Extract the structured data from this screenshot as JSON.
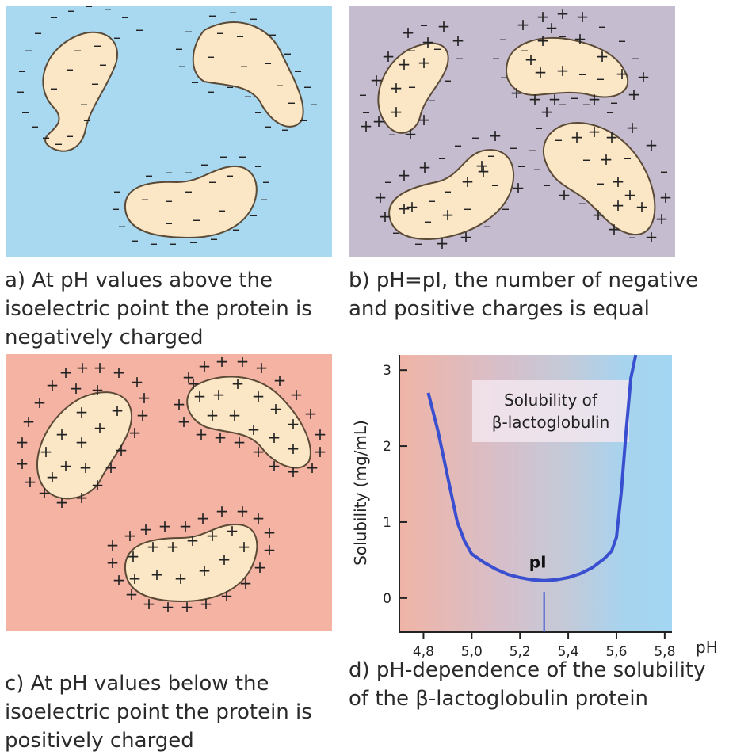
{
  "colors": {
    "panel_a_bg": "#a9d8f1",
    "panel_b_bg": "#c6bccf",
    "panel_c_bg": "#f4b3a3",
    "protein_fill": "#fbe6c6",
    "protein_stroke": "#5a4a36",
    "curve": "#3a4fd0",
    "pi_line": "#3a4fd0"
  },
  "symbols": {
    "negative": "–",
    "positive": "+"
  },
  "captions": {
    "a": [
      "a) At pH values above the",
      "isoelectric point the protein is",
      "negatively charged"
    ],
    "b": [
      "b) pH=pI, the number of negative",
      "and positive charges is equal"
    ],
    "c": [
      "c) At pH values below the",
      "isoelectric point the protein is",
      "positively charged"
    ],
    "d": [
      "d) pH-dependence of the solubility",
      "of the β-lactoglobulin protein"
    ]
  },
  "chart_data": {
    "type": "line",
    "xlabel": "pH",
    "ylabel": "Solubility  (mg/mL)",
    "x_ticks": [
      "4,8",
      "5,0",
      "5,2",
      "5,4",
      "5,6",
      "5,8"
    ],
    "x_tick_values": [
      4.8,
      5.0,
      5.2,
      5.4,
      5.6,
      5.8
    ],
    "y_ticks": [
      "0",
      "1",
      "2",
      "3"
    ],
    "y_tick_values": [
      0,
      1,
      2,
      3
    ],
    "xlim": [
      4.7,
      5.83
    ],
    "ylim": [
      -0.45,
      3.2
    ],
    "legend_box": [
      "Solubility of",
      "β-lactoglobulin"
    ],
    "pi_label": "pI",
    "pi_value": 5.3,
    "series": [
      {
        "x": [
          4.82,
          4.86,
          4.9,
          4.94,
          4.97,
          5.0,
          5.05,
          5.1,
          5.15,
          5.2,
          5.25,
          5.3,
          5.35,
          5.4,
          5.45,
          5.5,
          5.55,
          5.58,
          5.6,
          5.62,
          5.64,
          5.66,
          5.68
        ],
        "values": [
          2.7,
          2.2,
          1.6,
          1.0,
          0.75,
          0.58,
          0.47,
          0.38,
          0.31,
          0.27,
          0.24,
          0.23,
          0.24,
          0.27,
          0.32,
          0.4,
          0.52,
          0.62,
          0.8,
          1.4,
          2.2,
          2.9,
          3.2
        ]
      }
    ]
  }
}
